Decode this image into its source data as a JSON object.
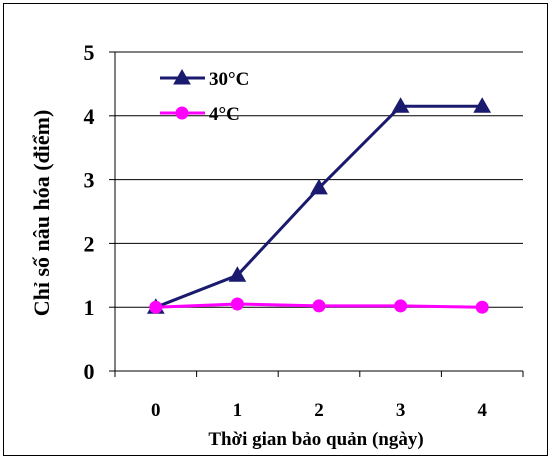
{
  "chart_data": {
    "type": "line",
    "title": "",
    "xlabel": "Thời gian bảo quản (ngày)",
    "ylabel": "Chỉ số nâu hóa (điểm)",
    "x": [
      0,
      1,
      2,
      3,
      4
    ],
    "x_tick_labels": [
      "0",
      "1",
      "2",
      "3",
      "4"
    ],
    "ylim": [
      0,
      5
    ],
    "y_tick_labels": [
      "0",
      "1",
      "2",
      "3",
      "4",
      "5"
    ],
    "grid": "horizontal",
    "legend_position": "top-left",
    "series": [
      {
        "name": "30°C",
        "values": [
          1.0,
          1.5,
          2.87,
          4.15,
          4.15
        ],
        "color": "#1a1a6e",
        "marker": "triangle"
      },
      {
        "name": "4°C",
        "values": [
          1.0,
          1.05,
          1.02,
          1.02,
          1.0
        ],
        "color": "#ff00ff",
        "marker": "circle"
      }
    ]
  }
}
